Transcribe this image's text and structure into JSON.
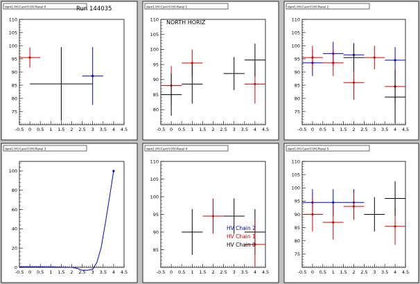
{
  "chart_data": [
    {
      "type": "errorbar",
      "pad_title": "dam1 [H] Card 0 [H] Panel 0",
      "run_label": "Run 144035",
      "xlim": [
        -0.5,
        4.5
      ],
      "ylim": [
        70,
        110
      ],
      "x_ticks": [
        "-0.5",
        "0",
        "0.5",
        "1",
        "1.5",
        "2",
        "2.5",
        "3",
        "3.5",
        "4",
        "4.5"
      ],
      "y_ticks": [
        "75",
        "80",
        "85",
        "90",
        "95",
        "100",
        "105",
        "110"
      ],
      "series": [
        {
          "color": "#d00000",
          "points": [
            {
              "x": 0,
              "xerr": 0.5,
              "y": 95.5,
              "yerr": 3.8
            }
          ]
        },
        {
          "color": "#000000",
          "points": [
            {
              "x": 1.5,
              "xerr": 1.5,
              "y": 85.5,
              "yerr": 14
            }
          ]
        },
        {
          "color": "#0000c8",
          "points": [
            {
              "x": 3,
              "xerr": 0.5,
              "y": 88.5,
              "yerr": 11
            }
          ]
        }
      ]
    },
    {
      "type": "errorbar",
      "pad_title": "dam1 [H] Card 0 [H] Panel 1",
      "annotation": "NORTH HORIZ",
      "xlim": [
        -0.5,
        4.5
      ],
      "ylim": [
        75,
        110
      ],
      "x_ticks": [
        "-0.5",
        "0",
        "0.5",
        "1",
        "1.5",
        "2",
        "2.5",
        "3",
        "3.5",
        "4",
        "4.5"
      ],
      "y_ticks": [
        "80",
        "85",
        "90",
        "95",
        "100",
        "105",
        "110"
      ],
      "series": [
        {
          "color": "#d00000",
          "points": [
            {
              "x": 0,
              "xerr": 0.5,
              "y": 88,
              "yerr": 6.5
            },
            {
              "x": 1,
              "xerr": 0.5,
              "y": 95.5,
              "yerr": 4.5
            },
            {
              "x": 4,
              "xerr": 0.5,
              "y": 88.5,
              "yerr": 6.5
            }
          ]
        },
        {
          "color": "#000000",
          "points": [
            {
              "x": 0,
              "xerr": 0.5,
              "y": 85,
              "yerr": 7
            },
            {
              "x": 1,
              "xerr": 0.5,
              "y": 88.5,
              "yerr": 6.5
            },
            {
              "x": 3,
              "xerr": 0.5,
              "y": 92,
              "yerr": 5.5
            },
            {
              "x": 4,
              "xerr": 0.5,
              "y": 96.5,
              "yerr": 5.5
            }
          ]
        }
      ]
    },
    {
      "type": "errorbar",
      "pad_title": "dam1 [H] Card 0 [H] Panel 2",
      "xlim": [
        -0.5,
        4.5
      ],
      "ylim": [
        70,
        110
      ],
      "x_ticks": [
        "-0.5",
        "0",
        "0.5",
        "1",
        "1.5",
        "2",
        "2.5",
        "3",
        "3.5",
        "4",
        "4.5"
      ],
      "y_ticks": [
        "75",
        "80",
        "85",
        "90",
        "95",
        "100",
        "105",
        "110"
      ],
      "series": [
        {
          "color": "#0000c8",
          "points": [
            {
              "x": 0,
              "xerr": 0.5,
              "y": 93.5,
              "yerr": 5
            },
            {
              "x": 1,
              "xerr": 0.5,
              "y": 97,
              "yerr": 4.5
            },
            {
              "x": 2,
              "xerr": 0.5,
              "y": 96.5,
              "yerr": 4.5
            },
            {
              "x": 4,
              "xerr": 0.5,
              "y": 94.5,
              "yerr": 5
            }
          ]
        },
        {
          "color": "#d00000",
          "points": [
            {
              "x": 0,
              "xerr": 0.5,
              "y": 95.5,
              "yerr": 4.5
            },
            {
              "x": 1,
              "xerr": 0.5,
              "y": 93.5,
              "yerr": 5
            },
            {
              "x": 2,
              "xerr": 0.5,
              "y": 86,
              "yerr": 6.5
            },
            {
              "x": 3,
              "xerr": 0.5,
              "y": 95.5,
              "yerr": 4.5
            },
            {
              "x": 4,
              "xerr": 0.5,
              "y": 84.5,
              "yerr": 6.5
            }
          ]
        },
        {
          "color": "#000000",
          "points": [
            {
              "x": 2,
              "xerr": 0.5,
              "y": 95.5,
              "yerr": 5
            },
            {
              "x": 4,
              "xerr": 0.5,
              "y": 80.5,
              "yerr": 10
            }
          ]
        }
      ]
    },
    {
      "type": "line",
      "pad_title": "dam1 [H] Card 0 [H] Panel 3",
      "xlim": [
        -0.5,
        4.5
      ],
      "ylim": [
        0,
        110
      ],
      "x_ticks": [
        "-0.5",
        "0",
        "0.5",
        "1",
        "1.5",
        "2",
        "2.5",
        "3",
        "3.5",
        "4",
        "4.5"
      ],
      "y_ticks": [
        "0",
        "20",
        "40",
        "60",
        "80",
        "100"
      ],
      "series": [
        {
          "color": "#0000c8",
          "x": [
            -0.5,
            -0.25,
            0,
            0.25,
            0.5,
            0.75,
            1,
            1.25,
            1.5,
            1.75,
            2,
            2.25,
            2.5,
            2.75,
            3,
            3.2,
            3.4,
            3.6,
            3.8,
            4
          ],
          "y": [
            0.6,
            0.6,
            0.6,
            0.6,
            0.6,
            0.5,
            0.5,
            0.4,
            0.3,
            0.2,
            0,
            -1,
            -3,
            -4,
            -2,
            5,
            20,
            45,
            72,
            100
          ],
          "marker": {
            "x": 4,
            "y": 100
          }
        }
      ]
    },
    {
      "type": "errorbar",
      "pad_title": "dam1 [H] Card 0 [H] Panel 4",
      "xlim": [
        -0.5,
        4.5
      ],
      "ylim": [
        80,
        110
      ],
      "x_ticks": [
        "-0.5",
        "0",
        "0.5",
        "1",
        "1.5",
        "2",
        "2.5",
        "3",
        "3.5",
        "4",
        "4.5"
      ],
      "y_ticks": [
        "85",
        "90",
        "95",
        "100",
        "105",
        "110"
      ],
      "legend": [
        {
          "label": "HV Chain 2",
          "color": "#0000c8"
        },
        {
          "label": "HV Chain 1",
          "color": "#d00000"
        },
        {
          "label": "HV Chain 0",
          "color": "#000000"
        }
      ],
      "series": [
        {
          "color": "#000000",
          "points": [
            {
              "x": 1,
              "xerr": 0.5,
              "y": 90,
              "yerr": 6.5
            },
            {
              "x": 3,
              "xerr": 0.5,
              "y": 94.5,
              "yerr": 5
            },
            {
              "x": 4,
              "xerr": 0.5,
              "y": 90,
              "yerr": 6.5
            }
          ]
        },
        {
          "color": "#d00000",
          "points": [
            {
              "x": 2,
              "xerr": 0.5,
              "y": 94.5,
              "yerr": 5
            },
            {
              "x": 4,
              "xerr": 0.5,
              "y": 86.5,
              "yerr": 7
            }
          ]
        }
      ]
    },
    {
      "type": "errorbar",
      "pad_title": "dam1 [H] Card 0 [H] Panel 5",
      "xlim": [
        -0.5,
        4.5
      ],
      "ylim": [
        70,
        110
      ],
      "x_ticks": [
        "-0.5",
        "0",
        "0.5",
        "1",
        "1.5",
        "2",
        "2.5",
        "3",
        "3.5",
        "4",
        "4.5"
      ],
      "y_ticks": [
        "75",
        "80",
        "85",
        "90",
        "95",
        "100",
        "105",
        "110"
      ],
      "series": [
        {
          "color": "#0000c8",
          "points": [
            {
              "x": 0,
              "xerr": 0.5,
              "y": 94.5,
              "yerr": 5
            },
            {
              "x": 1,
              "xerr": 0.5,
              "y": 94.5,
              "yerr": 5
            },
            {
              "x": 2,
              "xerr": 0.5,
              "y": 94.5,
              "yerr": 5
            }
          ]
        },
        {
          "color": "#d00000",
          "points": [
            {
              "x": 0,
              "xerr": 0.5,
              "y": 90,
              "yerr": 6.5
            },
            {
              "x": 1,
              "xerr": 0.5,
              "y": 87,
              "yerr": 6.5
            },
            {
              "x": 2,
              "xerr": 0.5,
              "y": 93,
              "yerr": 5
            },
            {
              "x": 4,
              "xerr": 0.5,
              "y": 85.5,
              "yerr": 7
            }
          ]
        },
        {
          "color": "#000000",
          "points": [
            {
              "x": 3,
              "xerr": 0.5,
              "y": 90,
              "yerr": 6.5
            },
            {
              "x": 4,
              "xerr": 0.5,
              "y": 96,
              "yerr": 6.5
            }
          ]
        }
      ]
    }
  ]
}
